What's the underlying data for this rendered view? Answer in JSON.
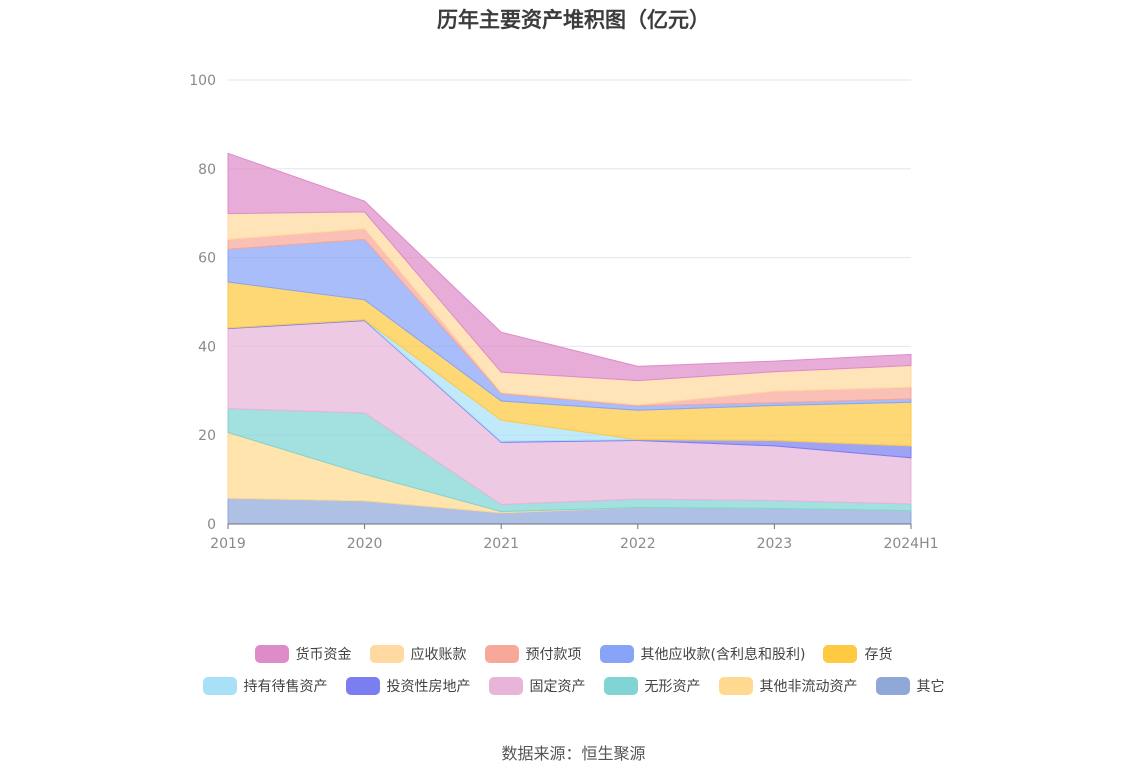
{
  "chart_data": {
    "type": "area",
    "stacked": true,
    "title": "历年主要资产堆积图（亿元）",
    "source": "数据来源：恒生聚源",
    "categories": [
      "2019",
      "2020",
      "2021",
      "2022",
      "2023",
      "2024H1"
    ],
    "ylim": [
      0,
      100
    ],
    "yticks": [
      "0",
      "20",
      "40",
      "60",
      "80",
      "100"
    ],
    "grid": true,
    "legend_position": "bottom",
    "series": [
      {
        "name": "其它",
        "color": "#8fa8d8",
        "values": [
          5.8,
          5.2,
          2.5,
          3.7,
          3.5,
          3.0
        ]
      },
      {
        "name": "其他非流动资产",
        "color": "#ffd98f",
        "values": [
          14.8,
          6.0,
          0.3,
          0.0,
          0.0,
          0.0
        ]
      },
      {
        "name": "无形资产",
        "color": "#80d4d4",
        "values": [
          5.4,
          13.8,
          1.6,
          1.9,
          1.8,
          1.5
        ]
      },
      {
        "name": "固定资产",
        "color": "#e8b4da",
        "values": [
          18.0,
          20.8,
          14.0,
          13.2,
          12.3,
          10.4
        ]
      },
      {
        "name": "投资性房地产",
        "color": "#7b7ef0",
        "values": [
          0.2,
          0.2,
          0.2,
          0.2,
          1.2,
          2.7
        ]
      },
      {
        "name": "持有待售资产",
        "color": "#a8e0f8",
        "values": [
          0.0,
          0.0,
          4.8,
          0.0,
          0.0,
          0.0
        ]
      },
      {
        "name": "存货",
        "color": "#ffc941",
        "values": [
          10.3,
          4.5,
          4.3,
          6.6,
          7.9,
          9.8
        ]
      },
      {
        "name": "其他应收款(含利息和股利)",
        "color": "#88a4f8",
        "values": [
          7.4,
          13.6,
          1.7,
          1.0,
          0.6,
          0.8
        ]
      },
      {
        "name": "预付款项",
        "color": "#f8a898",
        "values": [
          2.2,
          2.4,
          0.2,
          0.2,
          2.6,
          2.6
        ]
      },
      {
        "name": "应收账款",
        "color": "#ffd9a0",
        "values": [
          5.8,
          3.8,
          4.6,
          5.5,
          4.4,
          4.9
        ]
      },
      {
        "name": "货币资金",
        "color": "#de8cc8",
        "values": [
          13.6,
          2.4,
          9.0,
          3.2,
          2.4,
          2.5
        ]
      }
    ],
    "legend_order": [
      "货币资金",
      "应收账款",
      "预付款项",
      "其他应收款(含利息和股利)",
      "存货",
      "持有待售资产",
      "投资性房地产",
      "固定资产",
      "无形资产",
      "其他非流动资产",
      "其它"
    ]
  }
}
